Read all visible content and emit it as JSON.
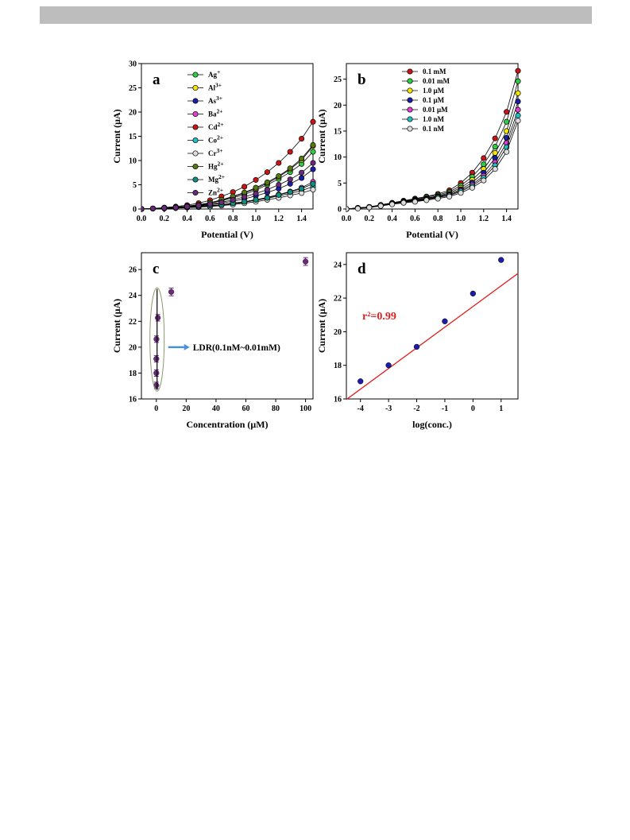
{
  "chart_data": [
    {
      "panel": "a",
      "type": "line",
      "xlabel": "Potential (V)",
      "ylabel": "Current (μA)",
      "xlim": [
        0,
        1.5
      ],
      "ylim": [
        0,
        30
      ],
      "xticks": [
        "0.0",
        "0.2",
        "0.4",
        "0.6",
        "0.8",
        "1.0",
        "1.2",
        "1.4"
      ],
      "yticks": [
        "0",
        "5",
        "10",
        "15",
        "20",
        "25",
        "30"
      ],
      "legend_position": "top-right",
      "x": [
        0,
        0.1,
        0.2,
        0.3,
        0.4,
        0.5,
        0.6,
        0.7,
        0.8,
        0.9,
        1.0,
        1.1,
        1.2,
        1.3,
        1.4,
        1.5
      ],
      "series": [
        {
          "name": "Ag",
          "sup": "+",
          "color": "#2ecc40",
          "values": [
            0,
            0.1,
            0.2,
            0.3,
            0.5,
            0.8,
            1.2,
            1.7,
            2.3,
            3.0,
            3.9,
            5.0,
            6.2,
            7.6,
            9.3,
            11.8
          ]
        },
        {
          "name": "Al",
          "sup": "3+",
          "color": "#f3e600",
          "values": [
            0,
            0.1,
            0.2,
            0.3,
            0.5,
            0.8,
            1.2,
            1.8,
            2.5,
            3.3,
            4.2,
            5.3,
            6.6,
            8.2,
            10.1,
            13.0
          ]
        },
        {
          "name": "As",
          "sup": "3+",
          "color": "#1c1ca8",
          "values": [
            0,
            0.1,
            0.2,
            0.3,
            0.4,
            0.6,
            0.9,
            1.2,
            1.6,
            2.1,
            2.7,
            3.4,
            4.2,
            5.2,
            6.4,
            8.2
          ]
        },
        {
          "name": "Ba",
          "sup": "2+",
          "color": "#e040d0",
          "values": [
            0,
            0.1,
            0.2,
            0.3,
            0.4,
            0.5,
            0.7,
            0.9,
            1.2,
            1.5,
            1.9,
            2.4,
            3.0,
            3.6,
            4.4,
            5.6
          ]
        },
        {
          "name": "Cd",
          "sup": "2+",
          "color": "#c81414",
          "values": [
            0,
            0.1,
            0.3,
            0.5,
            0.8,
            1.2,
            1.8,
            2.6,
            3.5,
            4.6,
            6.0,
            7.6,
            9.5,
            11.8,
            14.5,
            18.0
          ]
        },
        {
          "name": "Co",
          "sup": "2+",
          "color": "#20c0c0",
          "values": [
            0,
            0.1,
            0.2,
            0.2,
            0.3,
            0.4,
            0.6,
            0.8,
            1.1,
            1.4,
            1.8,
            2.2,
            2.7,
            3.2,
            3.8,
            4.6
          ]
        },
        {
          "name": "Cr",
          "sup": "3+",
          "color": "#dddddd",
          "values": [
            0,
            0.1,
            0.1,
            0.2,
            0.3,
            0.4,
            0.5,
            0.7,
            0.9,
            1.2,
            1.5,
            1.9,
            2.3,
            2.8,
            3.3,
            4.0
          ]
        },
        {
          "name": "Hg",
          "sup": "2+",
          "color": "#557a10",
          "values": [
            0,
            0.1,
            0.2,
            0.4,
            0.6,
            0.9,
            1.3,
            1.9,
            2.6,
            3.4,
            4.4,
            5.5,
            6.8,
            8.4,
            10.4,
            13.2
          ]
        },
        {
          "name": "Mg",
          "sup": "2+",
          "color": "#0f8f7f",
          "values": [
            0,
            0.1,
            0.2,
            0.3,
            0.4,
            0.5,
            0.7,
            0.9,
            1.2,
            1.5,
            1.9,
            2.3,
            2.9,
            3.5,
            4.2,
            5.2
          ]
        },
        {
          "name": "Zn",
          "sup": "2+",
          "color": "#6a2a7a",
          "values": [
            0,
            0.1,
            0.2,
            0.3,
            0.5,
            0.7,
            1.0,
            1.4,
            1.9,
            2.5,
            3.2,
            4.0,
            5.0,
            6.1,
            7.5,
            9.5
          ]
        }
      ]
    },
    {
      "panel": "b",
      "type": "line",
      "xlabel": "Potential (V)",
      "ylabel": "Current (μA)",
      "xlim": [
        0,
        1.5
      ],
      "ylim": [
        0,
        28
      ],
      "xticks": [
        "0.0",
        "0.2",
        "0.4",
        "0.6",
        "0.8",
        "1.0",
        "1.2",
        "1.4"
      ],
      "yticks": [
        "0",
        "5",
        "10",
        "15",
        "20",
        "25"
      ],
      "legend_position": "top-center",
      "x": [
        0,
        0.1,
        0.2,
        0.3,
        0.4,
        0.5,
        0.6,
        0.7,
        0.8,
        0.9,
        1.0,
        1.1,
        1.2,
        1.3,
        1.4,
        1.5
      ],
      "series": [
        {
          "name": "0.1 mM",
          "color": "#c81414",
          "values": [
            0,
            0.2,
            0.4,
            0.8,
            1.2,
            1.6,
            2.0,
            2.4,
            2.9,
            3.6,
            5.0,
            7.0,
            9.8,
            13.6,
            18.7,
            26.6
          ]
        },
        {
          "name": "0.01 mM",
          "color": "#2ecc40",
          "values": [
            0,
            0.2,
            0.4,
            0.7,
            1.1,
            1.5,
            1.9,
            2.3,
            2.7,
            3.3,
            4.5,
            6.2,
            8.6,
            12.0,
            16.8,
            24.6
          ]
        },
        {
          "name": "1.0 μM",
          "color": "#f3e600",
          "values": [
            0,
            0.2,
            0.4,
            0.7,
            1.1,
            1.4,
            1.8,
            2.1,
            2.5,
            3.1,
            4.1,
            5.6,
            7.7,
            10.8,
            15.0,
            22.3
          ]
        },
        {
          "name": "0.1 μM",
          "color": "#1c1ca8",
          "values": [
            0,
            0.2,
            0.4,
            0.7,
            1.0,
            1.4,
            1.7,
            2.0,
            2.4,
            2.9,
            3.8,
            5.1,
            7.0,
            9.8,
            13.7,
            20.7
          ]
        },
        {
          "name": "0.01 μM",
          "color": "#e040d0",
          "values": [
            0,
            0.2,
            0.3,
            0.6,
            1.0,
            1.3,
            1.6,
            1.9,
            2.3,
            2.7,
            3.6,
            4.7,
            6.4,
            9.0,
            12.7,
            19.1
          ]
        },
        {
          "name": "1.0 nM",
          "color": "#20c0c0",
          "values": [
            0,
            0.2,
            0.3,
            0.6,
            1.0,
            1.2,
            1.5,
            1.8,
            2.2,
            2.6,
            3.4,
            4.4,
            6.0,
            8.4,
            11.9,
            18.0
          ]
        },
        {
          "name": "0.1 nM",
          "color": "#dddddd",
          "values": [
            0,
            0.1,
            0.3,
            0.6,
            0.9,
            1.2,
            1.4,
            1.7,
            2.0,
            2.4,
            3.1,
            4.1,
            5.5,
            7.7,
            11.0,
            17.0
          ]
        }
      ]
    },
    {
      "panel": "c",
      "type": "scatter",
      "xlabel": "Concentration (μM)",
      "ylabel": "Current (μA)",
      "xlim": [
        -10,
        105
      ],
      "ylim": [
        16,
        27.3
      ],
      "xticks": [
        "0",
        "20",
        "40",
        "60",
        "80",
        "100"
      ],
      "yticks": [
        "16",
        "18",
        "20",
        "22",
        "24",
        "26"
      ],
      "color": "#6a2a7a",
      "annotation": "LDR(0.1nM~0.01mM)",
      "points": [
        {
          "x": 0.0001,
          "y": 17.05,
          "err": 0.25
        },
        {
          "x": 0.001,
          "y": 18.0,
          "err": 0.25
        },
        {
          "x": 0.01,
          "y": 19.1,
          "err": 0.25
        },
        {
          "x": 0.1,
          "y": 20.62,
          "err": 0.25
        },
        {
          "x": 1,
          "y": 22.27,
          "err": 0.25
        },
        {
          "x": 10,
          "y": 24.27,
          "err": 0.3
        },
        {
          "x": 100,
          "y": 26.62,
          "err": 0.3
        }
      ]
    },
    {
      "panel": "d",
      "type": "scatter",
      "xlabel": "log(conc.)",
      "ylabel": "Current (μA)",
      "xlim": [
        -4.5,
        1.6
      ],
      "ylim": [
        16,
        24.7
      ],
      "xticks": [
        "-4",
        "-3",
        "-2",
        "-1",
        "0",
        "1"
      ],
      "yticks": [
        "16",
        "18",
        "20",
        "22",
        "24"
      ],
      "color": "#1c1ca8",
      "fit_color": "#e02020",
      "annotation": "r²=0.99",
      "fit": {
        "slope": 1.23,
        "intercept": 21.5
      },
      "points": [
        {
          "x": -4,
          "y": 17.05
        },
        {
          "x": -3,
          "y": 18.0
        },
        {
          "x": -2,
          "y": 19.1
        },
        {
          "x": -1,
          "y": 20.62
        },
        {
          "x": 0,
          "y": 22.27
        },
        {
          "x": 1,
          "y": 24.27
        }
      ]
    }
  ]
}
